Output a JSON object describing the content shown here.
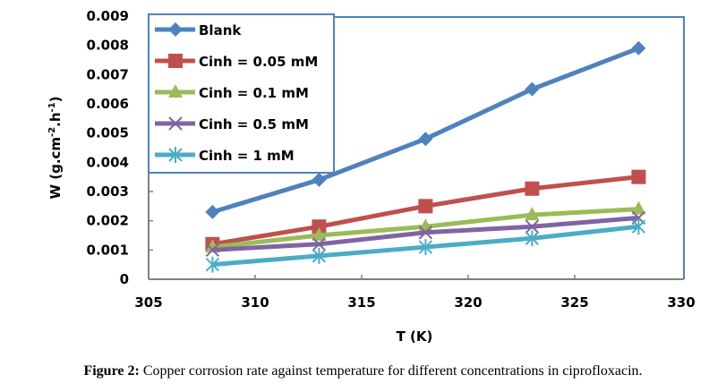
{
  "chart_data": {
    "type": "line",
    "title": "",
    "xlabel": "T (K)",
    "ylabel": "W (g.cm-2.h-1)",
    "ylabel_parts": {
      "main": "W (g.cm",
      "sup1": "-2",
      "mid": ".h",
      "sup2": "-1",
      "end": ")"
    },
    "xlim": [
      305,
      330
    ],
    "ylim": [
      0,
      0.009
    ],
    "xticks": [
      "305",
      "310",
      "315",
      "320",
      "325",
      "330"
    ],
    "xtick_values": [
      305,
      310,
      315,
      320,
      325,
      330
    ],
    "yticks": [
      "0",
      "0.001",
      "0.002",
      "0.003",
      "0.004",
      "0.005",
      "0.006",
      "0.007",
      "0.008",
      "0.009"
    ],
    "ytick_values": [
      0,
      0.001,
      0.002,
      0.003,
      0.004,
      0.005,
      0.006,
      0.007,
      0.008,
      0.009
    ],
    "grid": false,
    "legend_position": "top-left",
    "x": [
      308,
      313,
      318,
      323,
      328
    ],
    "series": [
      {
        "name": "Blank",
        "color": "#4f81bd",
        "marker": "diamond",
        "values": [
          0.0023,
          0.0034,
          0.0048,
          0.0065,
          0.0079
        ]
      },
      {
        "name": "Cinh = 0.05 mM",
        "color": "#c0504d",
        "marker": "square",
        "values": [
          0.0012,
          0.0018,
          0.0025,
          0.0031,
          0.0035
        ]
      },
      {
        "name": "Cinh = 0.1 mM",
        "color": "#9bbb59",
        "marker": "triangle",
        "values": [
          0.0011,
          0.0015,
          0.0018,
          0.0022,
          0.0024
        ]
      },
      {
        "name": "Cinh = 0.5 mM",
        "color": "#8064a2",
        "marker": "x",
        "values": [
          0.001,
          0.0012,
          0.0016,
          0.0018,
          0.0021
        ]
      },
      {
        "name": "Cinh = 1 mM",
        "color": "#4bacc6",
        "marker": "star",
        "values": [
          0.0005,
          0.0008,
          0.0011,
          0.0014,
          0.0018
        ]
      }
    ]
  },
  "caption": {
    "label": "Figure 2:",
    "text": " Copper corrosion rate against temperature for different concentrations in ciprofloxacin."
  }
}
